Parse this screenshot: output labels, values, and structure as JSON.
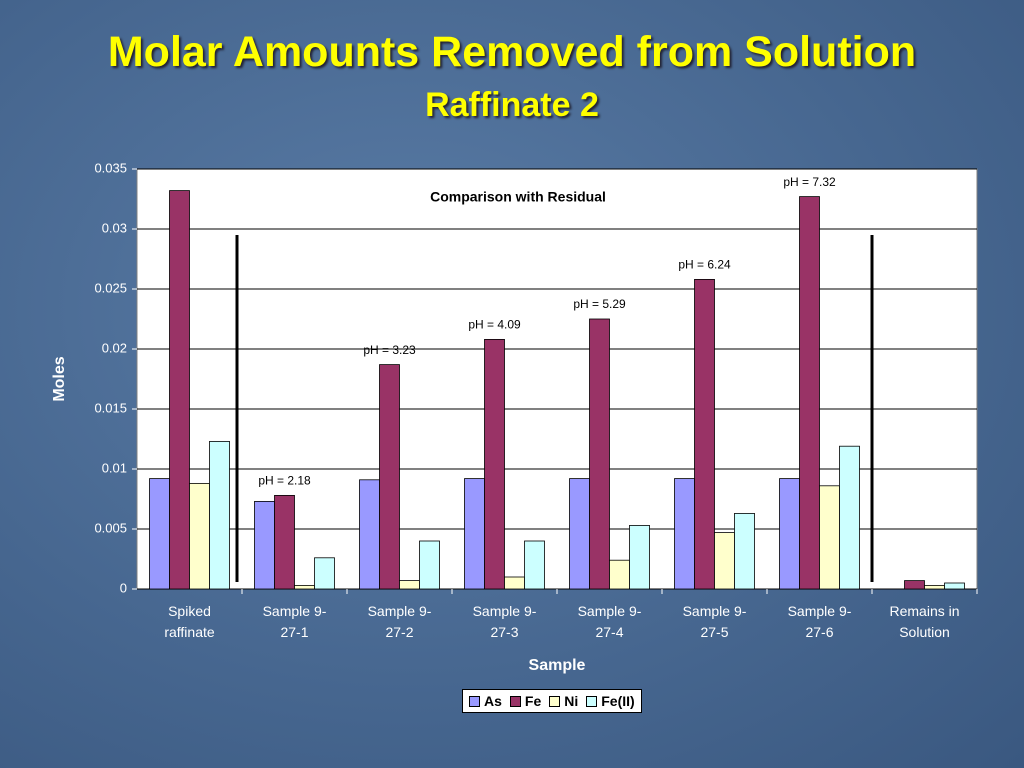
{
  "chart_data": {
    "type": "bar",
    "title": "Molar Amounts Removed from Solution",
    "subtitle": "Raffinate 2",
    "plot_title": "Comparison with Residual",
    "x_label": "Sample",
    "y_label": "Moles",
    "categories": [
      "Spiked\nraffinate",
      "Sample 9-\n27-1",
      "Sample 9-\n27-2",
      "Sample 9-\n27-3",
      "Sample 9-\n27-4",
      "Sample 9-\n27-5",
      "Sample 9-\n27-6",
      "Remains in\nSolution"
    ],
    "series": [
      {
        "name": "As",
        "color": "#9999ff",
        "values": [
          0.0092,
          0.0073,
          0.0091,
          0.0092,
          0.0092,
          0.0092,
          0.0092,
          0
        ]
      },
      {
        "name": "Fe",
        "color": "#993366",
        "values": [
          0.0332,
          0.0078,
          0.0187,
          0.0208,
          0.0225,
          0.0258,
          0.0327,
          0.0007
        ]
      },
      {
        "name": "Ni",
        "color": "#ffffcc",
        "values": [
          0.0088,
          0.0003,
          0.0007,
          0.001,
          0.0024,
          0.0047,
          0.0086,
          0.0003
        ]
      },
      {
        "name": "Fe(II)",
        "color": "#ccffff",
        "values": [
          0.0123,
          0.0026,
          0.004,
          0.004,
          0.0053,
          0.0063,
          0.0119,
          0.0005
        ]
      }
    ],
    "annotations": [
      "pH = 2.18",
      "pH = 3.23",
      "pH = 4.09",
      "pH = 5.29",
      "pH = 6.24",
      "pH = 7.32"
    ],
    "ylim": [
      0,
      0.035
    ],
    "yticks": [
      0,
      0.005,
      0.01,
      0.015,
      0.02,
      0.025,
      0.03,
      0.035
    ],
    "grid": true
  }
}
